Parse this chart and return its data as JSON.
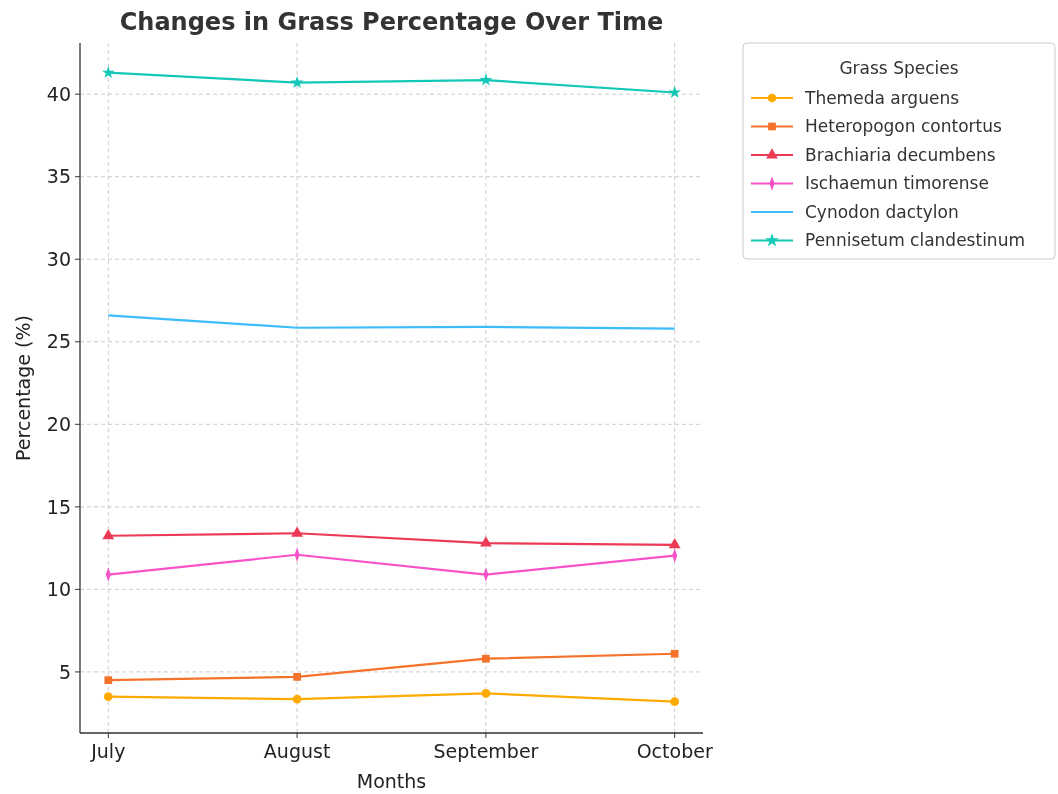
{
  "chart_data": {
    "type": "line",
    "title": "Changes in Grass Percentage Over Time",
    "xlabel": "Months",
    "ylabel": "Percentage (%)",
    "legend_title": "Grass Species",
    "categories": [
      "July",
      "August",
      "September",
      "October"
    ],
    "ylim": [
      1.3,
      43.1
    ],
    "yticks": [
      5,
      10,
      15,
      20,
      25,
      30,
      35,
      40
    ],
    "grid": true,
    "legend": "top right",
    "series": [
      {
        "name": "Themeda arguens",
        "color": "#ffaa00",
        "marker": "circle",
        "values": [
          3.5,
          3.35,
          3.7,
          3.2
        ]
      },
      {
        "name": "Heteropogon contortus",
        "color": "#f5722b",
        "marker": "square",
        "values": [
          4.5,
          4.7,
          5.8,
          6.1
        ]
      },
      {
        "name": "Brachiaria decumbens",
        "color": "#ec3a55",
        "marker": "triangle",
        "values": [
          13.25,
          13.4,
          12.8,
          12.7
        ]
      },
      {
        "name": "Ischaemun timorense",
        "color": "#f752c8",
        "marker": "diamond",
        "values": [
          10.9,
          12.1,
          10.9,
          12.05
        ]
      },
      {
        "name": "Cynodon dactylon",
        "color": "#3cbcfa",
        "marker": "none",
        "values": [
          26.6,
          25.85,
          25.9,
          25.8
        ]
      },
      {
        "name": "Pennisetum clandestinum",
        "color": "#14c8b8",
        "marker": "star",
        "values": [
          41.3,
          40.7,
          40.85,
          40.1
        ]
      }
    ]
  }
}
